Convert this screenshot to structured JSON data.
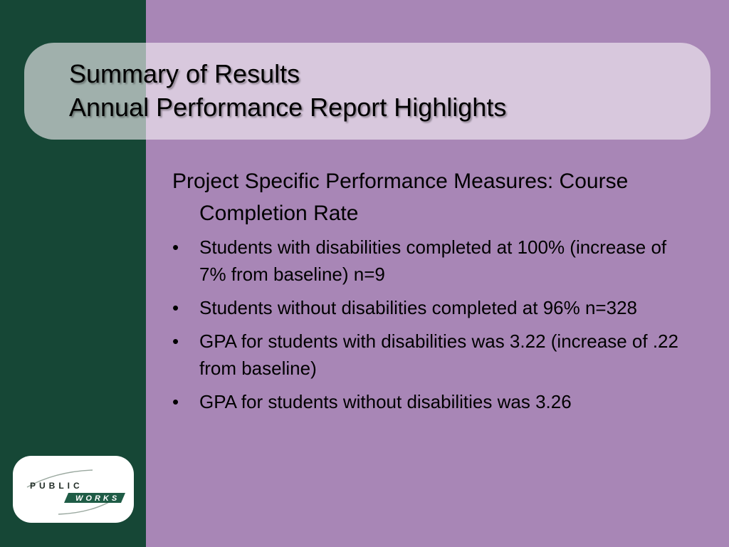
{
  "slide": {
    "title_line1": "Summary of Results",
    "title_line2": "Annual Performance Report Highlights",
    "heading": "Project Specific Performance Measures: Course Completion Rate",
    "bullets": [
      "Students with disabilities completed at 100% (increase of 7% from baseline) n=9",
      "Students without disabilities completed at 96% n=328",
      "GPA for students with disabilities was 3.22 (increase of .22 from baseline)",
      "GPA for students without disabilities was 3.26"
    ]
  },
  "logo": {
    "top_text": "PUBLIC",
    "bottom_text": "WORKS"
  },
  "colors": {
    "background": "#a886b6",
    "left_band": "#164736",
    "logo_green": "#1f5c46"
  }
}
